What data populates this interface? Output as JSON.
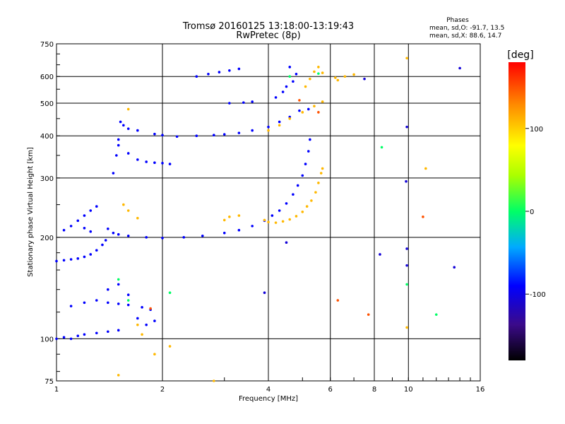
{
  "chart_data": {
    "type": "scatter",
    "title": "Tromsø 20160125 13:18:00-13:19:43",
    "subtitle": "RwPretec (8p)",
    "xlabel": "Frequency [MHz]",
    "ylabel": "Stationary phase Virtual Height [km]",
    "x_scale": "log",
    "y_scale": "log",
    "xlim": [
      1,
      16
    ],
    "ylim": [
      75,
      750
    ],
    "x_ticks": [
      1,
      2,
      4,
      6,
      8,
      10,
      16
    ],
    "x_tick_labels": [
      "1",
      "2",
      "4",
      "6",
      "8",
      "10",
      "16"
    ],
    "y_ticks": [
      75,
      100,
      200,
      300,
      400,
      500,
      600,
      750
    ],
    "y_tick_labels": [
      "75",
      "100",
      "200",
      "300",
      "400",
      "500",
      "600",
      "750"
    ],
    "grid": true,
    "phases": {
      "title": "Phases",
      "line1": "mean, sd,O: -91.7, 13.5",
      "line2": "mean, sd,X:  88.6, 14.7"
    },
    "colorbar": {
      "label": "[deg]",
      "ticks": [
        100,
        0,
        -100
      ],
      "tick_labels": [
        "100",
        "0",
        "-100"
      ],
      "range": [
        -180,
        180
      ]
    },
    "series": [
      {
        "points": [
          [
            1.0,
            170,
            -95
          ],
          [
            1.05,
            171,
            -95
          ],
          [
            1.1,
            172,
            -95
          ],
          [
            1.15,
            173,
            -95
          ],
          [
            1.2,
            175,
            -95
          ],
          [
            1.25,
            178,
            -95
          ],
          [
            1.3,
            183,
            -95
          ],
          [
            1.35,
            190,
            -95
          ],
          [
            1.38,
            196,
            -95
          ],
          [
            1.05,
            210,
            -95
          ],
          [
            1.1,
            216,
            -95
          ],
          [
            1.15,
            224,
            -95
          ],
          [
            1.2,
            232,
            -95
          ],
          [
            1.25,
            240,
            -95
          ],
          [
            1.3,
            247,
            -95
          ],
          [
            1.2,
            213,
            -95
          ],
          [
            1.25,
            208,
            -95
          ],
          [
            1.4,
            212,
            -95
          ],
          [
            1.45,
            206,
            -95
          ],
          [
            1.5,
            204,
            -95
          ],
          [
            1.6,
            202,
            -95
          ],
          [
            1.8,
            200,
            -95
          ],
          [
            2.0,
            199,
            -95
          ],
          [
            2.3,
            200,
            -95
          ],
          [
            2.6,
            202,
            -95
          ],
          [
            3.0,
            206,
            -95
          ],
          [
            3.3,
            210,
            -95
          ],
          [
            3.6,
            216,
            -95
          ],
          [
            3.9,
            224,
            -95
          ],
          [
            4.1,
            232,
            -95
          ],
          [
            4.3,
            240,
            -95
          ],
          [
            4.5,
            252,
            -95
          ],
          [
            4.7,
            268,
            -95
          ],
          [
            4.85,
            285,
            -95
          ],
          [
            5.0,
            305,
            -95
          ],
          [
            5.1,
            330,
            -95
          ],
          [
            5.2,
            360,
            -95
          ],
          [
            5.25,
            390,
            -95
          ],
          [
            1.45,
            310,
            -95
          ],
          [
            1.48,
            350,
            -95
          ],
          [
            1.5,
            390,
            -95
          ],
          [
            1.52,
            440,
            -95
          ],
          [
            1.55,
            430,
            -95
          ],
          [
            1.6,
            420,
            -95
          ],
          [
            1.7,
            415,
            -95
          ],
          [
            1.9,
            405,
            -95
          ],
          [
            2.0,
            402,
            -95
          ],
          [
            2.2,
            398,
            -95
          ],
          [
            2.5,
            400,
            -95
          ],
          [
            2.8,
            402,
            -95
          ],
          [
            3.0,
            404,
            -95
          ],
          [
            3.3,
            408,
            -95
          ],
          [
            3.6,
            415,
            -95
          ],
          [
            4.0,
            425,
            -95
          ],
          [
            4.3,
            440,
            -95
          ],
          [
            4.6,
            455,
            -95
          ],
          [
            4.9,
            475,
            -95
          ],
          [
            5.2,
            480,
            -95
          ],
          [
            1.5,
            375,
            -95
          ],
          [
            1.6,
            355,
            -95
          ],
          [
            1.7,
            340,
            -95
          ],
          [
            1.8,
            335,
            -95
          ],
          [
            1.9,
            333,
            -95
          ],
          [
            2.0,
            332,
            -95
          ],
          [
            2.1,
            330,
            -95
          ],
          [
            2.5,
            600,
            -95
          ],
          [
            2.7,
            610,
            -95
          ],
          [
            2.9,
            618,
            -95
          ],
          [
            3.1,
            625,
            -95
          ],
          [
            3.3,
            632,
            -95
          ],
          [
            3.1,
            500,
            -95
          ],
          [
            3.4,
            502,
            -95
          ],
          [
            3.6,
            505,
            -95
          ],
          [
            4.2,
            520,
            -95
          ],
          [
            4.4,
            540,
            -95
          ],
          [
            4.5,
            560,
            -95
          ],
          [
            4.7,
            580,
            -95
          ],
          [
            4.8,
            610,
            -95
          ],
          [
            4.6,
            640,
            -95
          ],
          [
            1.0,
            100,
            -95
          ],
          [
            1.05,
            101,
            -95
          ],
          [
            1.1,
            100,
            -95
          ],
          [
            1.15,
            102,
            -95
          ],
          [
            1.2,
            103,
            -95
          ],
          [
            1.3,
            104,
            -95
          ],
          [
            1.4,
            105,
            -95
          ],
          [
            1.5,
            106,
            -95
          ],
          [
            1.1,
            125,
            -95
          ],
          [
            1.2,
            128,
            -95
          ],
          [
            1.3,
            130,
            -95
          ],
          [
            1.4,
            128,
            -95
          ],
          [
            1.5,
            127,
            -95
          ],
          [
            1.6,
            126,
            -95
          ],
          [
            1.75,
            124,
            -95
          ],
          [
            1.85,
            122,
            -95
          ],
          [
            1.4,
            140,
            -95
          ],
          [
            1.5,
            145,
            -95
          ],
          [
            1.6,
            135,
            -95
          ],
          [
            1.7,
            115,
            -95
          ],
          [
            1.8,
            110,
            -95
          ],
          [
            1.9,
            113,
            -95
          ],
          [
            9.9,
            425,
            -110
          ],
          [
            9.9,
            185,
            -110
          ],
          [
            9.9,
            165,
            -110
          ],
          [
            9.85,
            293,
            -110
          ],
          [
            8.3,
            178,
            -110
          ],
          [
            7.5,
            590,
            -110
          ],
          [
            4.5,
            193,
            -110
          ],
          [
            3.9,
            137,
            -110
          ],
          [
            13.5,
            163,
            -110
          ],
          [
            14.0,
            635,
            -110
          ]
        ]
      },
      {
        "points": [
          [
            3.9,
            225,
            110
          ],
          [
            4.0,
            222,
            110
          ],
          [
            4.2,
            221,
            110
          ],
          [
            4.4,
            223,
            110
          ],
          [
            4.6,
            226,
            110
          ],
          [
            4.8,
            231,
            110
          ],
          [
            5.0,
            238,
            110
          ],
          [
            5.15,
            247,
            110
          ],
          [
            5.3,
            257,
            110
          ],
          [
            5.45,
            272,
            110
          ],
          [
            5.55,
            290,
            110
          ],
          [
            5.65,
            310,
            110
          ],
          [
            5.7,
            320,
            110
          ],
          [
            3.0,
            225,
            110
          ],
          [
            3.1,
            230,
            110
          ],
          [
            3.3,
            232,
            110
          ],
          [
            1.55,
            250,
            110
          ],
          [
            1.6,
            240,
            110
          ],
          [
            1.7,
            228,
            110
          ],
          [
            4.0,
            415,
            110
          ],
          [
            4.3,
            430,
            110
          ],
          [
            4.6,
            450,
            110
          ],
          [
            5.0,
            470,
            110
          ],
          [
            5.4,
            490,
            110
          ],
          [
            5.7,
            505,
            110
          ],
          [
            5.1,
            560,
            110
          ],
          [
            5.25,
            590,
            110
          ],
          [
            5.4,
            620,
            110
          ],
          [
            5.55,
            640,
            110
          ],
          [
            5.7,
            615,
            110
          ],
          [
            6.2,
            595,
            110
          ],
          [
            6.6,
            600,
            110
          ],
          [
            7.0,
            608,
            110
          ],
          [
            6.3,
            585,
            110
          ],
          [
            1.6,
            480,
            110
          ],
          [
            1.7,
            110,
            110
          ],
          [
            1.75,
            103,
            110
          ],
          [
            1.9,
            90,
            110
          ],
          [
            2.8,
            75,
            110
          ],
          [
            1.5,
            78,
            110
          ],
          [
            2.1,
            95,
            110
          ],
          [
            9.9,
            108,
            110
          ],
          [
            9.9,
            680,
            110
          ],
          [
            11.2,
            320,
            110
          ]
        ]
      },
      {
        "points": [
          [
            1.5,
            150,
            0
          ],
          [
            1.6,
            130,
            0
          ],
          [
            9.9,
            145,
            0
          ],
          [
            8.4,
            370,
            0
          ],
          [
            2.1,
            137,
            0
          ],
          [
            12.0,
            118,
            0
          ],
          [
            4.6,
            600,
            0
          ],
          [
            5.55,
            612,
            0
          ]
        ]
      },
      {
        "points": [
          [
            7.7,
            118,
            150
          ],
          [
            11.0,
            230,
            150
          ],
          [
            1.85,
            123,
            150
          ],
          [
            5.55,
            470,
            150
          ],
          [
            6.3,
            130,
            150
          ],
          [
            4.9,
            510,
            150
          ]
        ]
      }
    ]
  }
}
